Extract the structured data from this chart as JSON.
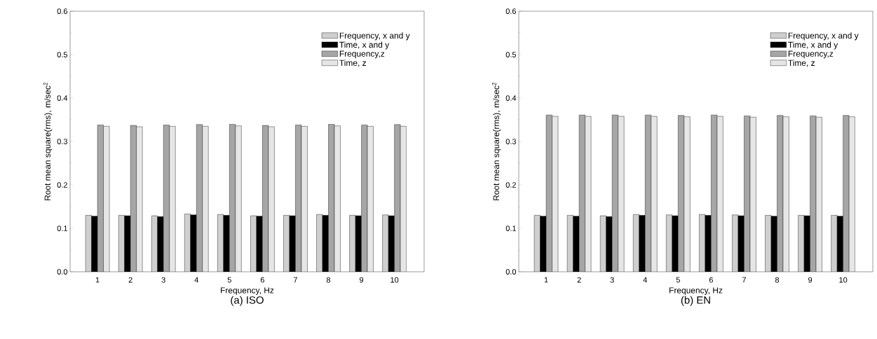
{
  "chart_data": [
    {
      "type": "bar",
      "title": "(a)  ISO",
      "xlabel": "Frequency, Hz",
      "ylabel": "Root mean square(rms), m/sec$^{2}$",
      "categories": [
        "1",
        "2",
        "3",
        "4",
        "5",
        "6",
        "7",
        "8",
        "9",
        "10"
      ],
      "ylim": [
        0,
        0.6
      ],
      "yticks": [
        {
          "value": 0,
          "label": "0.0"
        },
        0.1,
        0.2,
        0.3,
        0.4,
        0.5,
        0.6
      ],
      "legend": "top right",
      "series": [
        {
          "name": "Frequency, x and y",
          "color": "#cfcfcf",
          "values": [
            0.13,
            0.13,
            0.129,
            0.133,
            0.132,
            0.129,
            0.13,
            0.132,
            0.13,
            0.131
          ]
        },
        {
          "name": "Time, x and y",
          "color": "#000000",
          "values": [
            0.128,
            0.129,
            0.127,
            0.131,
            0.13,
            0.128,
            0.129,
            0.13,
            0.129,
            0.129
          ]
        },
        {
          "name": "Frequency,z",
          "color": "#a6a6a6",
          "values": [
            0.338,
            0.337,
            0.338,
            0.339,
            0.34,
            0.337,
            0.338,
            0.34,
            0.338,
            0.339
          ]
        },
        {
          "name": "Time, z",
          "color": "#e6e6e6",
          "values": [
            0.335,
            0.334,
            0.335,
            0.335,
            0.336,
            0.334,
            0.335,
            0.336,
            0.335,
            0.335
          ]
        }
      ]
    },
    {
      "type": "bar",
      "title": "(b)  EN",
      "xlabel": "Frequency, Hz",
      "ylabel": "Root mean square(rms), m/sec$^{2}$",
      "categories": [
        "1",
        "2",
        "3",
        "4",
        "5",
        "6",
        "7",
        "8",
        "9",
        "10"
      ],
      "ylim": [
        0,
        0.6
      ],
      "yticks": [
        {
          "value": 0,
          "label": "0.0"
        },
        0.1,
        0.2,
        0.3,
        0.4,
        0.5,
        0.6
      ],
      "legend": "top right",
      "series": [
        {
          "name": "Frequency, x and y",
          "color": "#cfcfcf",
          "values": [
            0.13,
            0.13,
            0.129,
            0.132,
            0.131,
            0.132,
            0.131,
            0.13,
            0.13,
            0.13
          ]
        },
        {
          "name": "Time, x and y",
          "color": "#000000",
          "values": [
            0.128,
            0.128,
            0.127,
            0.13,
            0.129,
            0.13,
            0.129,
            0.128,
            0.129,
            0.128
          ]
        },
        {
          "name": "Frequency,z",
          "color": "#a6a6a6",
          "values": [
            0.361,
            0.361,
            0.361,
            0.361,
            0.36,
            0.361,
            0.359,
            0.36,
            0.359,
            0.36
          ]
        },
        {
          "name": "Time, z",
          "color": "#e6e6e6",
          "values": [
            0.358,
            0.358,
            0.358,
            0.358,
            0.357,
            0.358,
            0.356,
            0.357,
            0.356,
            0.357
          ]
        }
      ]
    }
  ]
}
